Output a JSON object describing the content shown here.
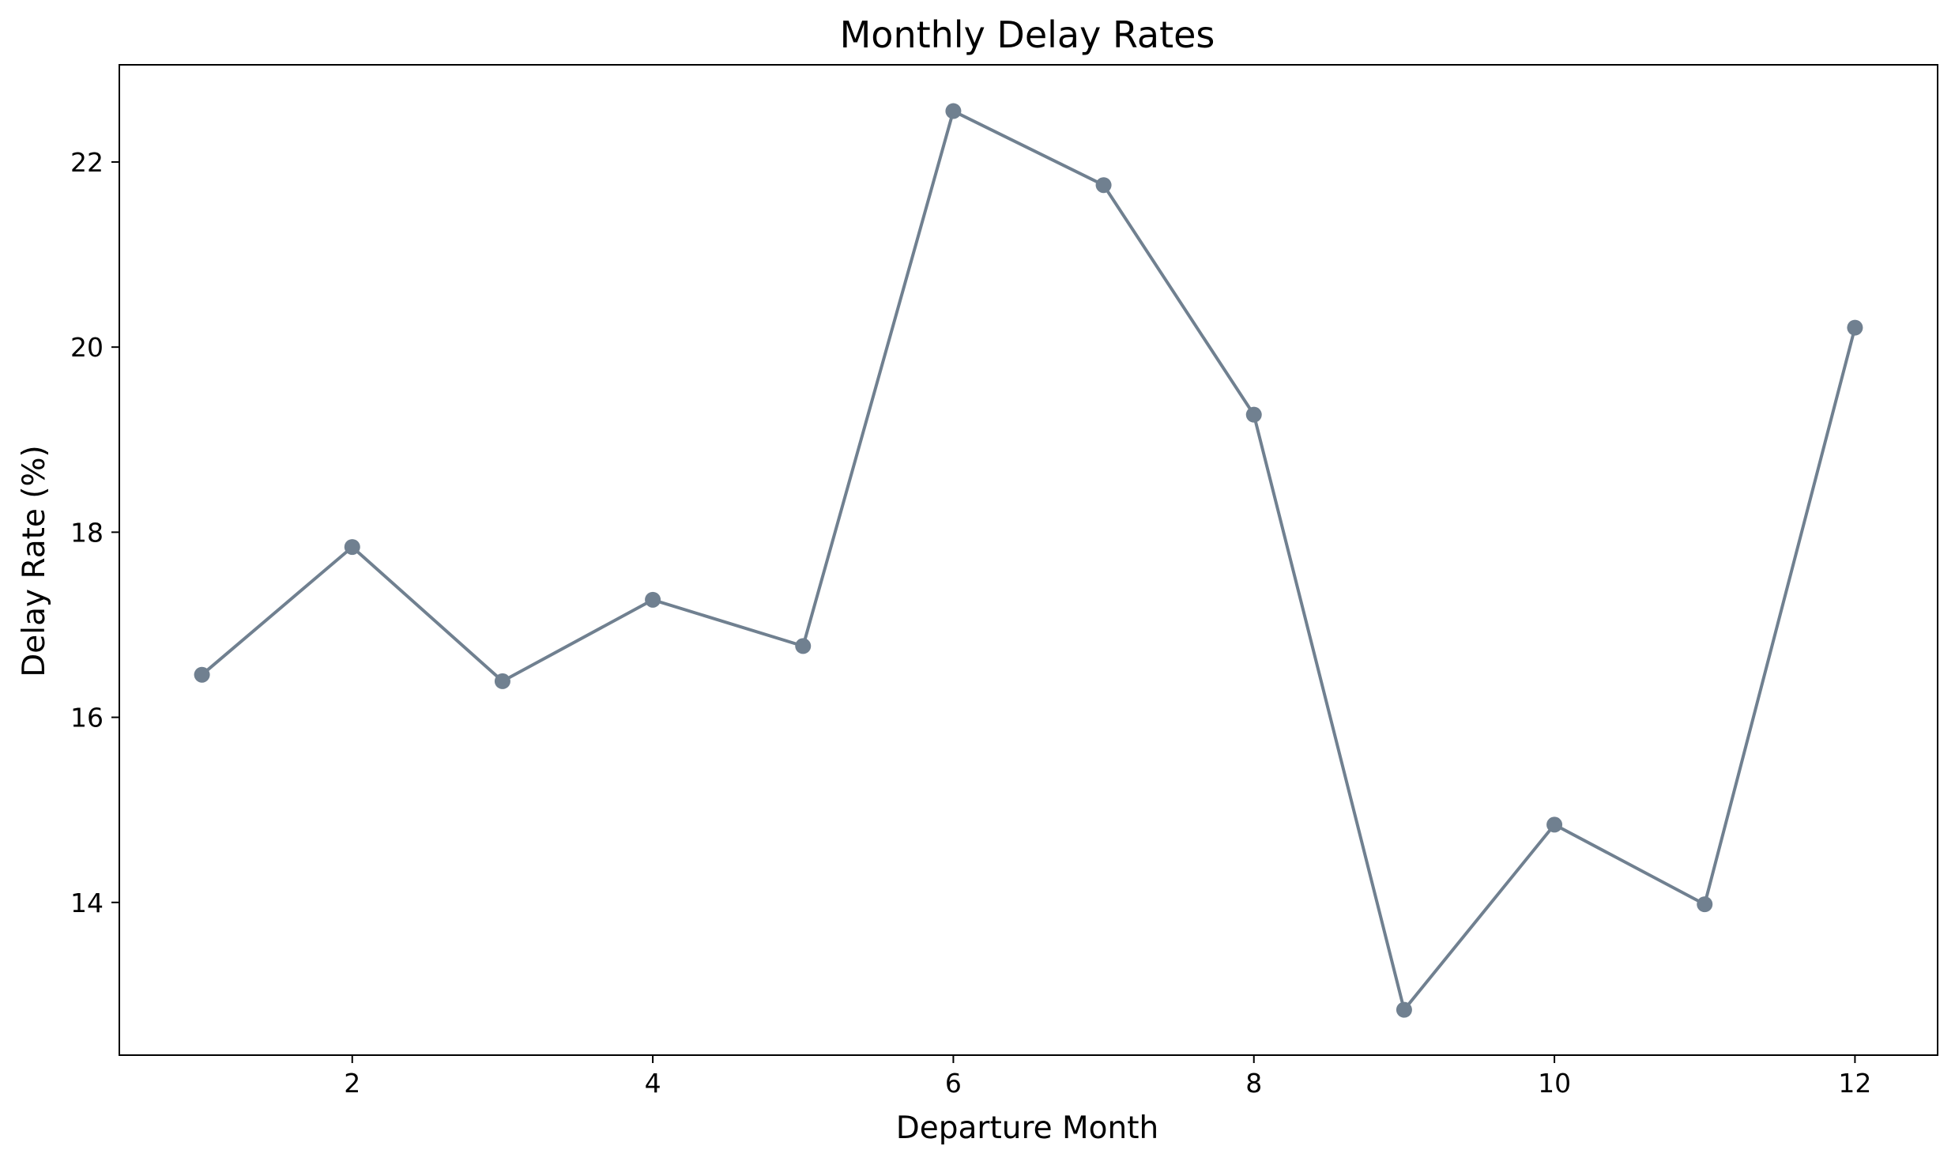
{
  "chart_data": {
    "type": "line",
    "title": "Monthly Delay Rates",
    "xlabel": "Departure Month",
    "ylabel": "Delay Rate (%)",
    "x": [
      1,
      2,
      3,
      4,
      5,
      6,
      7,
      8,
      9,
      10,
      11,
      12
    ],
    "series": [
      {
        "values": [
          16.46,
          17.84,
          16.39,
          17.27,
          16.77,
          22.55,
          21.75,
          19.27,
          12.84,
          14.84,
          13.98,
          20.21
        ],
        "color": "#708090",
        "marker": "circle"
      }
    ],
    "xlim": [
      0.45,
      12.55
    ],
    "ylim": [
      12.35,
      23.05
    ],
    "xticks": [
      2,
      4,
      6,
      8,
      10,
      12
    ],
    "yticks": [
      14,
      16,
      18,
      20,
      22
    ],
    "xtick_labels": [
      "2",
      "4",
      "6",
      "8",
      "10",
      "12"
    ],
    "ytick_labels": [
      "14",
      "16",
      "18",
      "20",
      "22"
    ],
    "grid": false,
    "legend": "none"
  }
}
